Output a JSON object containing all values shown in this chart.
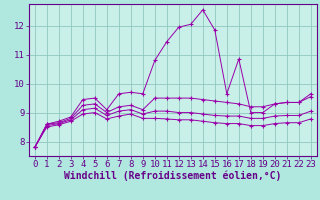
{
  "background_color": "#b0e8e0",
  "plot_bg_color": "#c8f0e8",
  "grid_color": "#90c8c0",
  "line_color": "#9900aa",
  "axis_color": "#660088",
  "xlabel": "Windchill (Refroidissement éolien,°C)",
  "tick_fontsize": 6.5,
  "xlabel_fontsize": 7,
  "xlim": [
    -0.5,
    23.5
  ],
  "ylim": [
    7.5,
    12.75
  ],
  "yticks": [
    8,
    9,
    10,
    11,
    12
  ],
  "xticks": [
    0,
    1,
    2,
    3,
    4,
    5,
    6,
    7,
    8,
    9,
    10,
    11,
    12,
    13,
    14,
    15,
    16,
    17,
    18,
    19,
    20,
    21,
    22,
    23
  ],
  "series": [
    [
      7.8,
      8.6,
      8.7,
      8.85,
      9.45,
      9.5,
      9.1,
      9.65,
      9.7,
      9.65,
      10.8,
      11.45,
      11.95,
      12.05,
      12.55,
      11.85,
      9.65,
      10.85,
      9.0,
      9.0,
      9.3,
      9.35,
      9.35,
      9.65
    ],
    [
      7.8,
      8.6,
      8.65,
      8.8,
      9.25,
      9.3,
      9.0,
      9.2,
      9.25,
      9.1,
      9.5,
      9.5,
      9.5,
      9.5,
      9.45,
      9.4,
      9.35,
      9.3,
      9.2,
      9.2,
      9.3,
      9.35,
      9.35,
      9.55
    ],
    [
      7.8,
      8.55,
      8.62,
      8.75,
      9.1,
      9.15,
      8.9,
      9.05,
      9.1,
      8.95,
      9.05,
      9.05,
      9.0,
      9.0,
      8.95,
      8.9,
      8.88,
      8.88,
      8.8,
      8.8,
      8.88,
      8.9,
      8.9,
      9.05
    ],
    [
      7.8,
      8.5,
      8.58,
      8.7,
      8.95,
      9.0,
      8.78,
      8.88,
      8.95,
      8.8,
      8.8,
      8.78,
      8.75,
      8.75,
      8.7,
      8.65,
      8.62,
      8.62,
      8.55,
      8.55,
      8.62,
      8.65,
      8.65,
      8.78
    ]
  ],
  "marker": "+"
}
